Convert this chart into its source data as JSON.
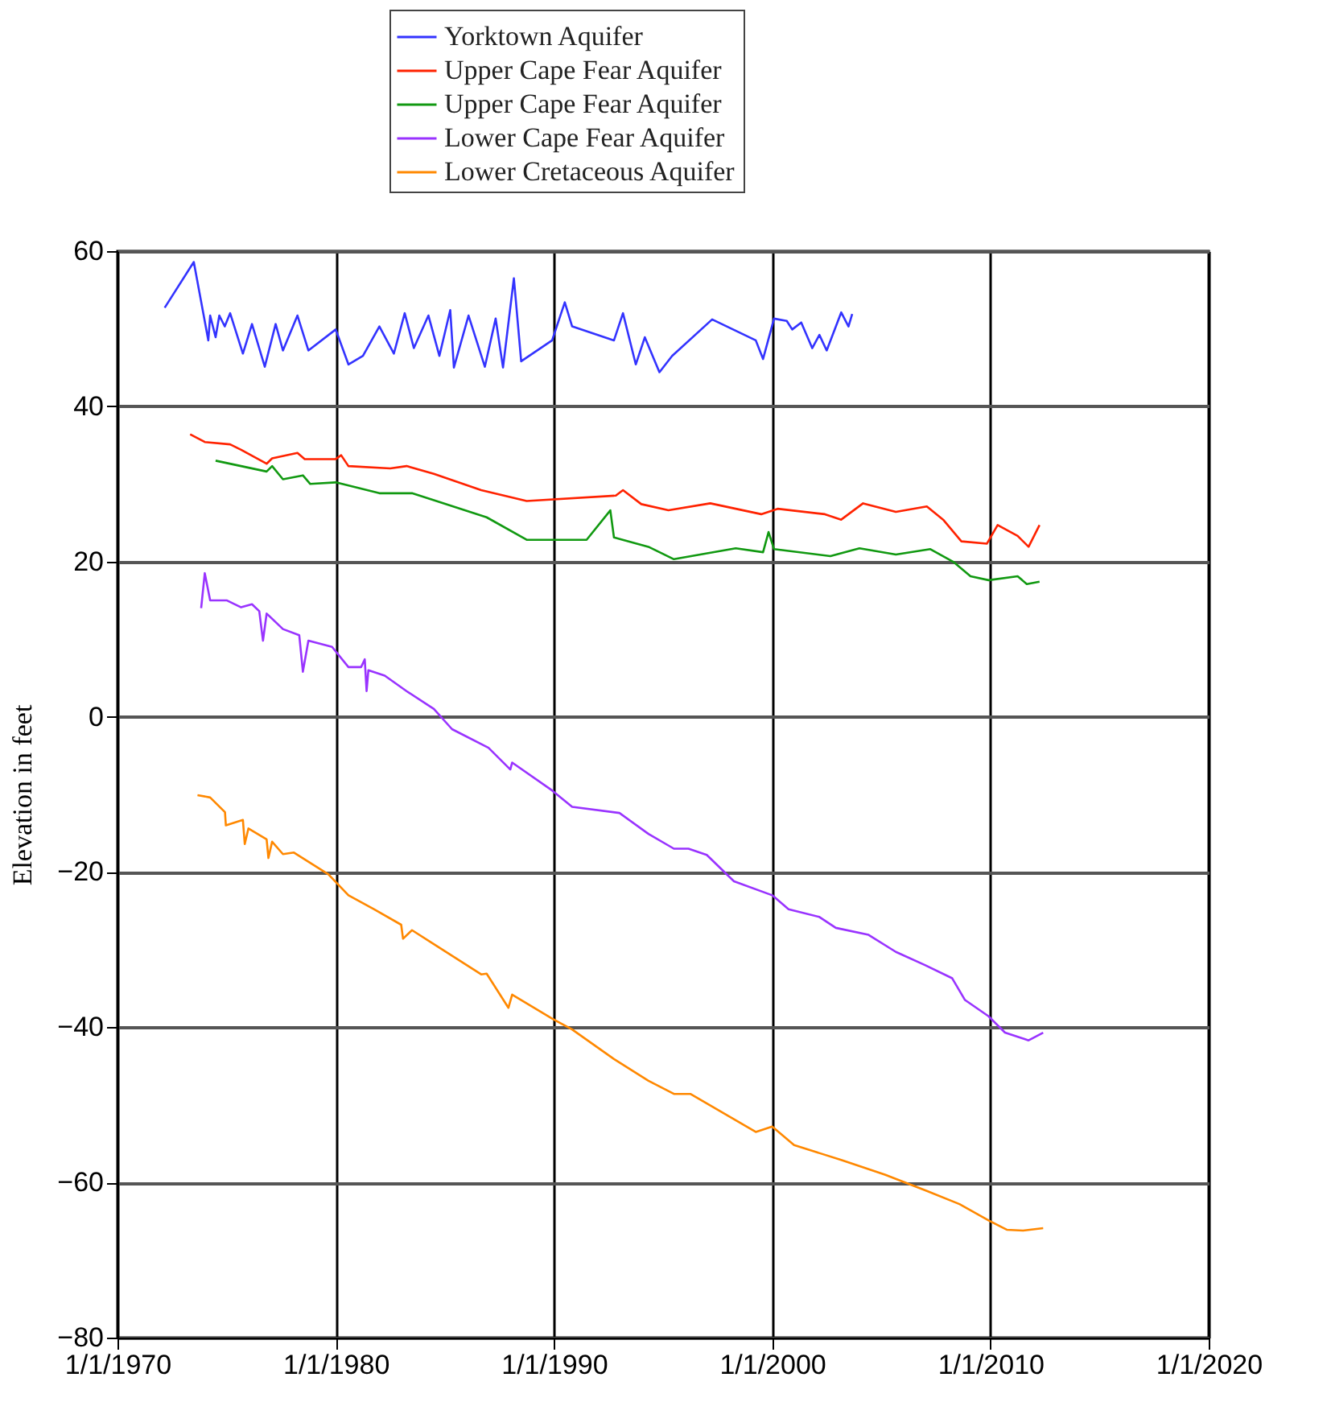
{
  "chart_data": {
    "type": "line",
    "ylabel": "Elevation in feet",
    "legend": "top",
    "grid": true,
    "marker": "none",
    "line_style": "solid",
    "xlim": [
      "1970-01-01",
      "2020-01-01"
    ],
    "xticks": [
      {
        "value": "1970-01-01",
        "label": "1/1/1970"
      },
      {
        "value": "1980-01-01",
        "label": "1/1/1980"
      },
      {
        "value": "1990-01-01",
        "label": "1/1/1990"
      },
      {
        "value": "2000-01-01",
        "label": "1/1/2000"
      },
      {
        "value": "2010-01-01",
        "label": "1/1/2010"
      },
      {
        "value": "2020-01-01",
        "label": "1/1/2020"
      }
    ],
    "ylim": [
      -80,
      60
    ],
    "yticks": [
      -80,
      -60,
      -40,
      -20,
      0,
      20,
      40,
      60
    ],
    "series": [
      {
        "name": "Yorktown Aquifer",
        "color": "#3333ff",
        "x": [
          "1972-03",
          "1973-07",
          "1974-03",
          "1974-04",
          "1974-07",
          "1974-09",
          "1974-12",
          "1975-03",
          "1975-10",
          "1976-03",
          "1976-10",
          "1977-04",
          "1977-08",
          "1978-04",
          "1978-10",
          "1980-01",
          "1980-08",
          "1981-04",
          "1982-01",
          "1982-09",
          "1983-03",
          "1983-08",
          "1984-04",
          "1984-10",
          "1985-04",
          "1985-06",
          "1986-02",
          "1986-11",
          "1987-05",
          "1987-09",
          "1988-03",
          "1988-07",
          "1989-12",
          "1990-07",
          "1990-11",
          "1992-10",
          "1993-03",
          "1993-10",
          "1994-03",
          "1994-11",
          "1995-06",
          "1997-04",
          "1999-04",
          "1999-08",
          "2000-02",
          "2000-09",
          "2000-12",
          "2001-05",
          "2001-11",
          "2002-03",
          "2002-07",
          "2003-03",
          "2003-07",
          "2003-09"
        ],
        "values": [
          52.7,
          58.6,
          48.5,
          51.7,
          48.9,
          51.7,
          50.3,
          52.0,
          46.8,
          50.6,
          45.1,
          50.6,
          47.2,
          51.7,
          47.2,
          49.9,
          45.4,
          46.5,
          50.3,
          46.8,
          52.0,
          47.5,
          51.7,
          46.5,
          52.4,
          45.0,
          51.7,
          45.1,
          51.3,
          45.0,
          56.5,
          45.8,
          48.5,
          53.4,
          50.3,
          48.5,
          52.0,
          45.4,
          48.9,
          44.4,
          46.5,
          51.2,
          48.5,
          46.1,
          51.3,
          51.0,
          49.9,
          50.8,
          47.5,
          49.2,
          47.2,
          52.1,
          50.3,
          51.9
        ]
      },
      {
        "name": "Upper Cape Fear Aquifer",
        "color": "#ff2200",
        "x": [
          "1973-05",
          "1974-01",
          "1975-03",
          "1975-09",
          "1976-11",
          "1977-02",
          "1978-04",
          "1978-08",
          "1980-01",
          "1980-04",
          "1980-08",
          "1982-07",
          "1983-04",
          "1984-07",
          "1986-09",
          "1988-10",
          "1992-11",
          "1993-03",
          "1994-01",
          "1995-04",
          "1997-03",
          "1999-07",
          "2000-04",
          "2002-06",
          "2003-03",
          "2004-03",
          "2005-09",
          "2007-02",
          "2007-11",
          "2008-09",
          "2009-11",
          "2010-05",
          "2011-04",
          "2011-10",
          "2012-04"
        ],
        "values": [
          36.4,
          35.4,
          35.1,
          34.4,
          32.6,
          33.3,
          34.0,
          33.2,
          33.2,
          33.7,
          32.3,
          32.0,
          32.3,
          31.3,
          29.2,
          27.8,
          28.5,
          29.2,
          27.4,
          26.6,
          27.5,
          26.1,
          26.8,
          26.1,
          25.4,
          27.5,
          26.4,
          27.1,
          25.4,
          22.6,
          22.3,
          24.7,
          23.3,
          21.9,
          24.7
        ]
      },
      {
        "name": "Upper Cape Fear Aquifer",
        "color": "#119911",
        "x": [
          "1974-07",
          "1976-11",
          "1977-02",
          "1977-08",
          "1978-07",
          "1978-11",
          "1980-01",
          "1982-01",
          "1983-07",
          "1984-07",
          "1986-12",
          "1988-10",
          "1991-07",
          "1992-08",
          "1992-10",
          "1994-05",
          "1995-07",
          "1998-05",
          "1999-08",
          "1999-11",
          "2000-02",
          "2002-09",
          "2004-01",
          "2005-09",
          "2007-04",
          "2008-05",
          "2009-02",
          "2009-12",
          "2011-04",
          "2011-09",
          "2012-04"
        ],
        "values": [
          33.0,
          31.6,
          32.3,
          30.6,
          31.1,
          30.0,
          30.2,
          28.8,
          28.8,
          27.9,
          25.7,
          22.8,
          22.8,
          26.6,
          23.1,
          21.9,
          20.3,
          21.7,
          21.2,
          23.8,
          21.6,
          20.7,
          21.7,
          20.9,
          21.6,
          19.9,
          18.1,
          17.6,
          18.1,
          17.1,
          17.4
        ]
      },
      {
        "name": "Lower Cape Fear Aquifer",
        "color": "#9933ff",
        "x": [
          "1973-11",
          "1974-01",
          "1974-04",
          "1975-01",
          "1975-09",
          "1976-03",
          "1976-07",
          "1976-09",
          "1976-11",
          "1977-08",
          "1978-05",
          "1978-07",
          "1978-10",
          "1979-11",
          "1980-08",
          "1981-03",
          "1981-05",
          "1981-06",
          "1981-07",
          "1982-04",
          "1983-04",
          "1984-07",
          "1985-05",
          "1987-01",
          "1988-01",
          "1988-02",
          "1989-12",
          "1990-11",
          "1993-01",
          "1994-05",
          "1995-07",
          "1996-03",
          "1997-01",
          "1998-04",
          "2000-01",
          "2000-10",
          "2002-03",
          "2002-12",
          "2004-06",
          "2005-09",
          "2007-01",
          "2008-04",
          "2008-11",
          "2009-12",
          "2010-09",
          "2011-10",
          "2012-06"
        ],
        "values": [
          14.0,
          18.5,
          15.0,
          15.0,
          14.1,
          14.5,
          13.6,
          9.8,
          13.3,
          11.3,
          10.5,
          5.8,
          9.8,
          9.0,
          6.4,
          6.4,
          7.4,
          3.3,
          6.0,
          5.3,
          3.3,
          1.0,
          -1.6,
          -4.0,
          -6.8,
          -5.9,
          -9.5,
          -11.6,
          -12.4,
          -15.1,
          -17.0,
          -17.0,
          -17.8,
          -21.2,
          -23.0,
          -24.8,
          -25.8,
          -27.2,
          -28.1,
          -30.3,
          -32.0,
          -33.7,
          -36.5,
          -38.6,
          -40.7,
          -41.7,
          -40.7
        ]
      },
      {
        "name": "Lower Cretaceous Aquifer",
        "color": "#ff8800",
        "x": [
          "1973-09",
          "1974-04",
          "1974-12-05",
          "1974-12-20",
          "1975-10",
          "1975-11",
          "1976-01",
          "1976-11",
          "1976-12",
          "1977-02",
          "1977-08",
          "1978-02",
          "1979-09",
          "1980-08",
          "1981-10",
          "1983-01",
          "1983-02",
          "1983-07",
          "1984-07",
          "1986-09",
          "1986-12",
          "1987-12",
          "1988-02",
          "1989-12",
          "1990-11",
          "1992-10",
          "1994-05",
          "1995-07",
          "1996-04",
          "1999-04",
          "2000-01",
          "2001-01",
          "2003-03",
          "2005-03",
          "2007-02",
          "2008-08",
          "2009-12",
          "2010-10",
          "2011-07",
          "2012-06"
        ],
        "values": [
          -10.1,
          -10.4,
          -12.3,
          -14.0,
          -13.3,
          -16.4,
          -14.4,
          -15.8,
          -18.2,
          -16.1,
          -17.7,
          -17.5,
          -20.3,
          -23.0,
          -24.8,
          -26.8,
          -28.6,
          -27.5,
          -29.3,
          -33.2,
          -33.1,
          -37.5,
          -35.8,
          -38.9,
          -40.3,
          -44.1,
          -46.9,
          -48.6,
          -48.6,
          -53.5,
          -52.8,
          -55.2,
          -57.1,
          -59.0,
          -61.1,
          -62.8,
          -64.9,
          -66.1,
          -66.2,
          -65.9
        ]
      }
    ]
  }
}
